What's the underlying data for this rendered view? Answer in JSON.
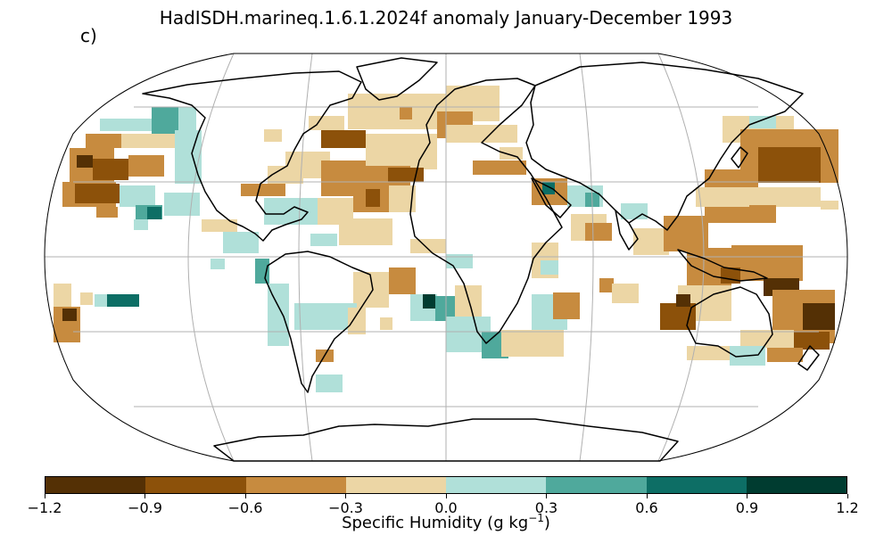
{
  "title": "HadISDH.marineq.1.6.1.2024f anomaly January-December 1993",
  "panel_label": "c)",
  "projection": "Robinson",
  "colorbar": {
    "label_prefix": "Specific Humidity (g kg",
    "label_exp": "−1",
    "label_suffix": ")",
    "ticks": [
      "−1.2",
      "−0.9",
      "−0.6",
      "−0.3",
      "0.0",
      "0.3",
      "0.6",
      "0.9",
      "1.2"
    ],
    "colors": [
      "#543005",
      "#8c510a",
      "#c78b3f",
      "#ecd6a5",
      "#b0e0d9",
      "#4fa99c",
      "#0d6e65",
      "#003c30"
    ]
  },
  "ocean_color": "#ffffff",
  "land_outline_color": "#000000",
  "gridline_color": "#b0b0b0"
}
